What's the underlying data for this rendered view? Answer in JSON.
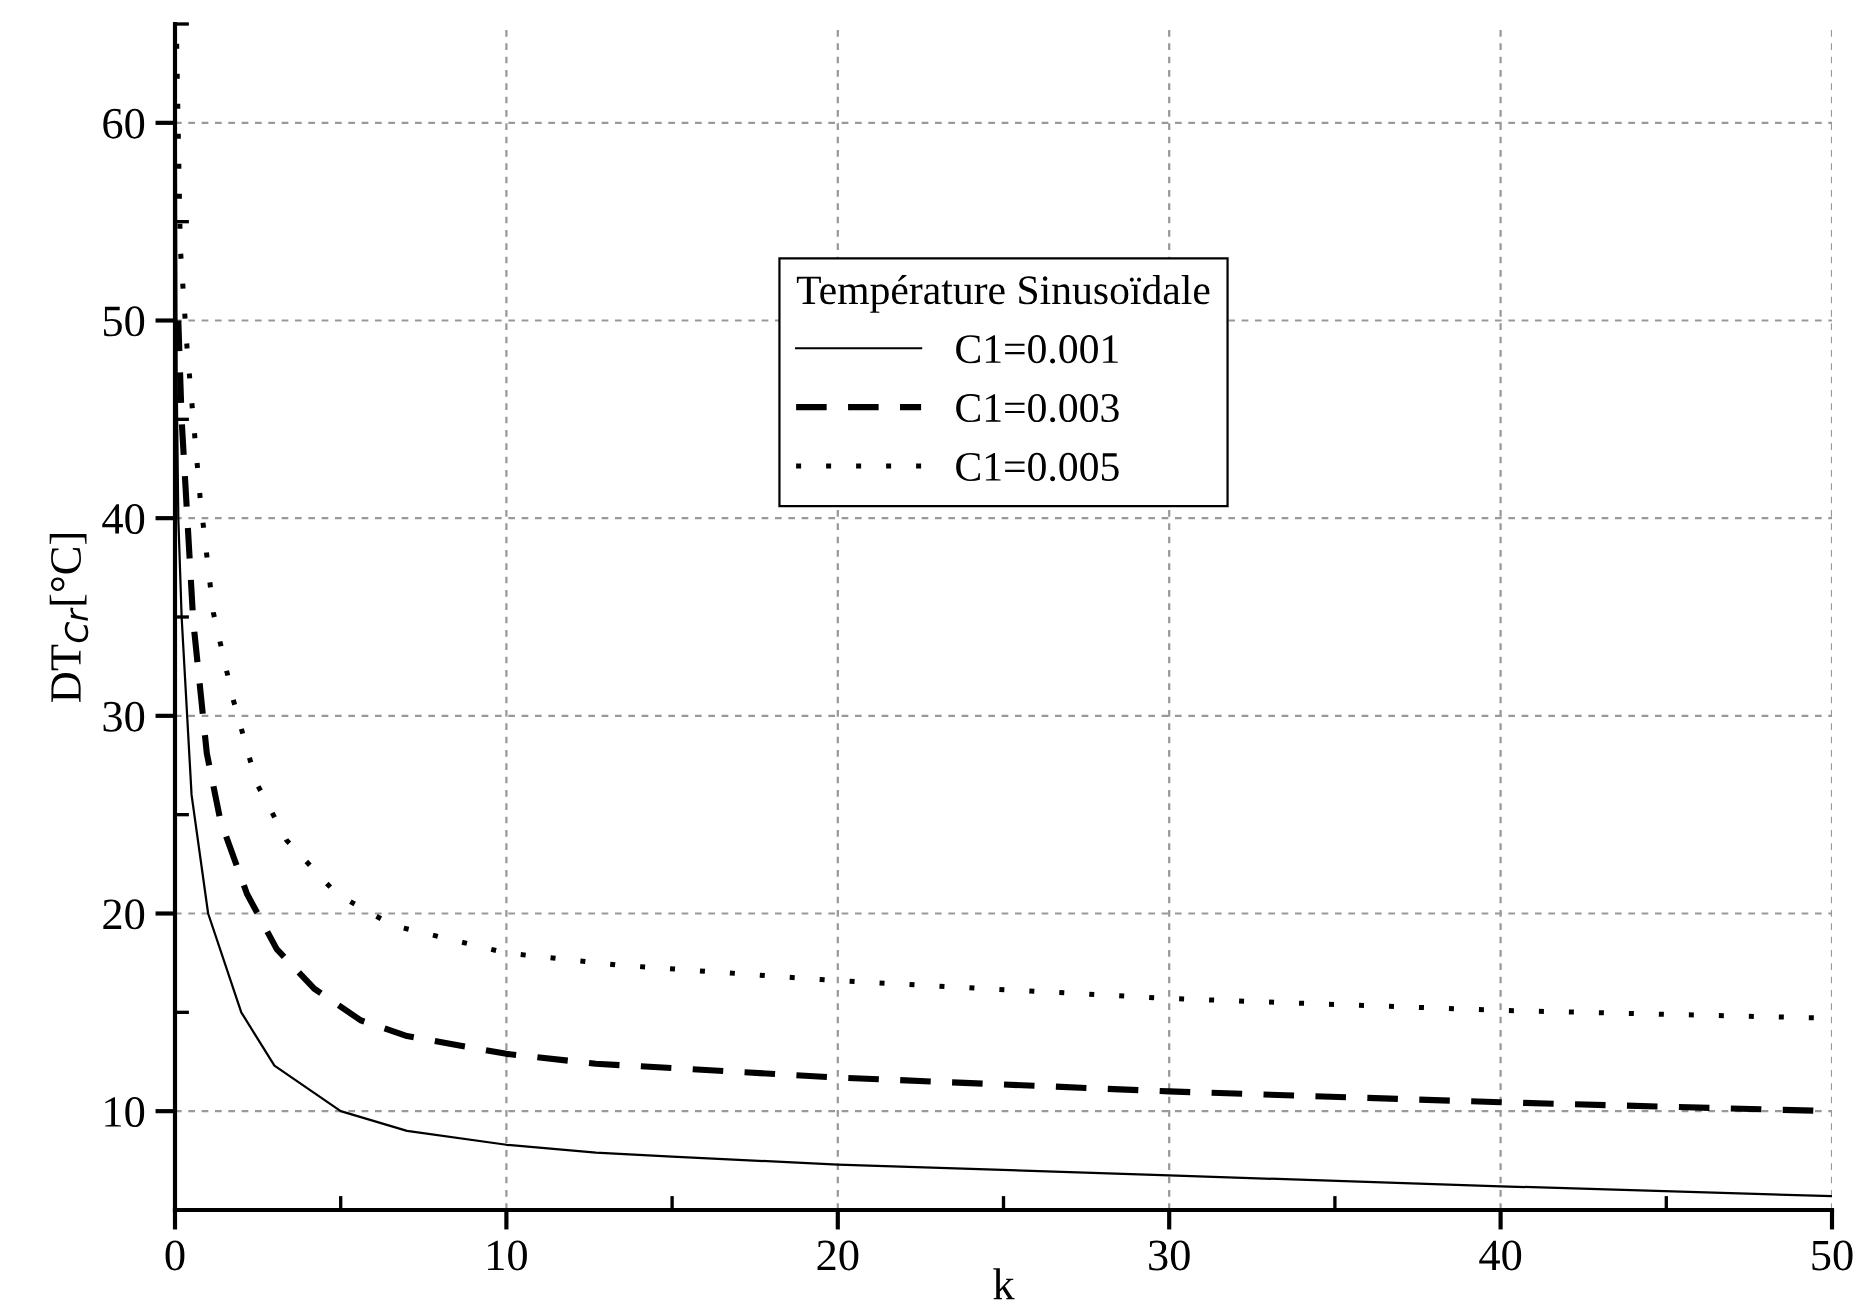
{
  "chart_data": {
    "type": "line",
    "xlabel": "k",
    "ylabel": "DT$_{Cr}$[°C]",
    "legend_title": "Température Sinusoïdale",
    "xlim": [
      0,
      50
    ],
    "ylim": [
      5,
      65
    ],
    "xticks": [
      0,
      {
        "value": 5,
        "label": null
      },
      10,
      {
        "value": 15,
        "label": null
      },
      20,
      {
        "value": 25,
        "label": null
      },
      30,
      {
        "value": 35,
        "label": null
      },
      40,
      {
        "value": 45,
        "label": null
      },
      50
    ],
    "yticks": [
      {
        "value": 5,
        "label": null
      },
      10,
      {
        "value": 15,
        "label": null
      },
      20,
      {
        "value": 25,
        "label": null
      },
      30,
      {
        "value": 35,
        "label": null
      },
      40,
      {
        "value": 45,
        "label": null
      },
      50,
      {
        "value": 55,
        "label": null
      },
      60,
      {
        "value": 65,
        "label": null
      }
    ],
    "grid": true,
    "legend": "top",
    "marker": "none",
    "series": [
      {
        "name": "C1=0.001",
        "color": "#000000",
        "line_style": "solid",
        "x": [
          0.02,
          0.05,
          0.1,
          0.2,
          0.5,
          1,
          2,
          3,
          5,
          7,
          10,
          12.7,
          15,
          20,
          30,
          40,
          50
        ],
        "values": [
          62,
          47,
          40,
          35,
          26,
          20,
          15,
          12.3,
          10,
          9,
          8.3,
          7.9,
          7.7,
          7.3,
          6.75,
          6.2,
          5.7
        ]
      },
      {
        "name": "C1=0.003",
        "color": "#000000",
        "line_style": "dashed",
        "x": [
          0.1,
          0.2,
          0.55,
          0.96,
          1.37,
          2.17,
          3.07,
          4.2,
          5.6,
          7,
          10,
          12.7,
          20,
          30,
          40,
          50
        ],
        "values": [
          50,
          45,
          34.8,
          28.1,
          24.7,
          21,
          18.2,
          16.2,
          14.6,
          13.8,
          12.9,
          12.4,
          11.7,
          11,
          10.45,
          10
        ]
      },
      {
        "name": "C1=0.005",
        "color": "#000000",
        "line_style": "dotted",
        "x": [
          0.05,
          0.16,
          0.36,
          0.76,
          1.16,
          1.76,
          2.46,
          3.37,
          4.87,
          6.57,
          10,
          13.3,
          20,
          30,
          40,
          50
        ],
        "values": [
          64,
          53.7,
          48.7,
          41,
          35.2,
          30.8,
          26.6,
          23.7,
          21,
          19.4,
          18,
          17.4,
          16.6,
          15.7,
          15.1,
          14.7
        ]
      }
    ]
  }
}
